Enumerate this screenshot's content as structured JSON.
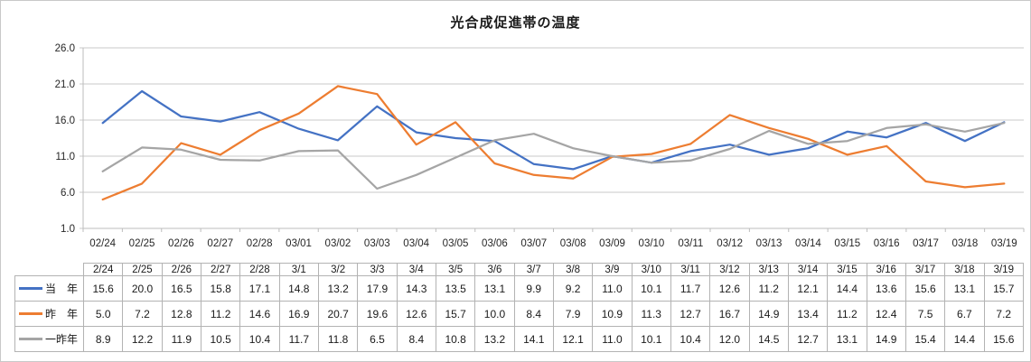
{
  "title": "光合成促進帯の温度",
  "chart_data": {
    "type": "line",
    "title": "光合成促進帯の温度",
    "categories": [
      "02/24",
      "02/25",
      "02/26",
      "02/27",
      "02/28",
      "03/01",
      "03/02",
      "03/03",
      "03/04",
      "03/05",
      "03/06",
      "03/07",
      "03/08",
      "03/09",
      "03/10",
      "03/11",
      "03/12",
      "03/13",
      "03/14",
      "03/15",
      "03/16",
      "03/17",
      "03/18",
      "03/19"
    ],
    "table_categories": [
      "2/24",
      "2/25",
      "2/26",
      "2/27",
      "2/28",
      "3/1",
      "3/2",
      "3/3",
      "3/4",
      "3/5",
      "3/6",
      "3/7",
      "3/8",
      "3/9",
      "3/10",
      "3/11",
      "3/12",
      "3/13",
      "3/14",
      "3/15",
      "3/16",
      "3/17",
      "3/18",
      "3/19"
    ],
    "series": [
      {
        "name": "当　年",
        "key": "this-year",
        "color": "#4472C4",
        "values": [
          15.6,
          20.0,
          16.5,
          15.8,
          17.1,
          14.8,
          13.2,
          17.9,
          14.3,
          13.5,
          13.1,
          9.9,
          9.2,
          11.0,
          10.1,
          11.7,
          12.6,
          11.2,
          12.1,
          14.4,
          13.6,
          15.6,
          13.1,
          15.7
        ]
      },
      {
        "name": "昨　年",
        "key": "last-year",
        "color": "#ED7D31",
        "values": [
          5.0,
          7.2,
          12.8,
          11.2,
          14.6,
          16.9,
          20.7,
          19.6,
          12.6,
          15.7,
          10.0,
          8.4,
          7.9,
          10.9,
          11.3,
          12.7,
          16.7,
          14.9,
          13.4,
          11.2,
          12.4,
          7.5,
          6.7,
          7.2
        ]
      },
      {
        "name": "一昨年",
        "key": "two-years-ago",
        "color": "#A5A5A5",
        "values": [
          8.9,
          12.2,
          11.9,
          10.5,
          10.4,
          11.7,
          11.8,
          6.5,
          8.4,
          10.8,
          13.2,
          14.1,
          12.1,
          11.0,
          10.1,
          10.4,
          12.0,
          14.5,
          12.7,
          13.1,
          14.9,
          15.4,
          14.4,
          15.6
        ]
      }
    ],
    "ylim": [
      1.0,
      26.0
    ],
    "y_ticks": [
      "26.0",
      "21.0",
      "16.0",
      "11.0",
      "6.0",
      "1.0"
    ],
    "grid": true,
    "legend_position": "data-table-left",
    "value_decimals": 1,
    "gridline_color": "#c9c9c9",
    "axis_color": "#bdbdbd",
    "tick_label_color": "#262626"
  }
}
